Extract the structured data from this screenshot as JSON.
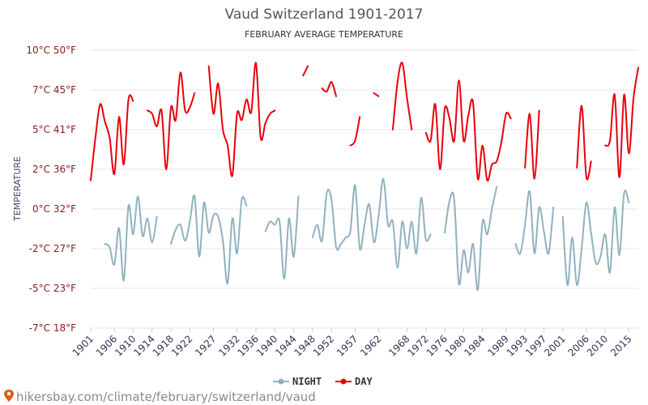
{
  "chart_data": {
    "type": "line",
    "title": "Vaud Switzerland 1901-2017",
    "subtitle": "FEBRUARY AVERAGE TEMPERATURE",
    "ylabel": "TEMPERATURE",
    "ylim": [
      -7,
      10
    ],
    "yticks": [
      {
        "value": 10,
        "label": "10°C 50°F"
      },
      {
        "value": 7.5,
        "label": "7°C 45°F"
      },
      {
        "value": 5,
        "label": "5°C 41°F"
      },
      {
        "value": 2.5,
        "label": "2°C 36°F"
      },
      {
        "value": 0,
        "label": "0°C 32°F"
      },
      {
        "value": -2.5,
        "label": "-2°C 27°F"
      },
      {
        "value": -5,
        "label": "-5°C 23°F"
      },
      {
        "value": -7.5,
        "label": "-7°C 18°F"
      }
    ],
    "xlim": [
      1901,
      2017
    ],
    "xticks": [
      1901,
      1906,
      1910,
      1914,
      1918,
      1922,
      1927,
      1932,
      1936,
      1940,
      1944,
      1948,
      1952,
      1957,
      1962,
      1968,
      1972,
      1976,
      1980,
      1984,
      1989,
      1993,
      1997,
      2001,
      2006,
      2010,
      2015
    ],
    "series": [
      {
        "name": "DAY",
        "color": "#e8000b",
        "values": [
          1.8,
          4.5,
          6.6,
          5.5,
          4.5,
          2.2,
          5.8,
          2.8,
          6.9,
          6.8,
          null,
          null,
          6.2,
          6.0,
          5.2,
          6.2,
          2.5,
          6.4,
          5.6,
          8.6,
          6.2,
          6.4,
          7.3,
          null,
          null,
          9.0,
          6.0,
          7.9,
          5.0,
          4.0,
          2.1,
          6.0,
          5.6,
          6.9,
          6.1,
          9.2,
          4.5,
          5.4,
          6.0,
          6.2,
          null,
          null,
          null,
          null,
          null,
          8.4,
          9.0,
          null,
          null,
          7.6,
          7.4,
          8.0,
          7.1,
          null,
          null,
          4.0,
          4.3,
          5.8,
          null,
          null,
          7.3,
          7.1,
          null,
          null,
          5.0,
          8.0,
          9.2,
          7.0,
          5.0,
          null,
          null,
          4.8,
          4.3,
          6.6,
          2.5,
          6.3,
          5.7,
          4.3,
          8.1,
          4.3,
          5.9,
          6.7,
          1.9,
          4.0,
          1.8,
          2.8,
          3.0,
          4.2,
          6.0,
          5.7,
          null,
          null,
          2.6,
          6.0,
          1.9,
          6.2,
          null,
          null,
          null,
          null,
          null,
          null,
          null,
          2.6,
          6.5,
          2.0,
          3.0,
          null,
          null,
          4.0,
          4.3,
          7.2,
          2.0,
          7.2,
          3.5,
          7.0,
          8.9
        ]
      },
      {
        "name": "NIGHT",
        "color": "#90b2be",
        "values": [
          null,
          null,
          null,
          -2.2,
          -2.4,
          -3.5,
          -1.2,
          -4.5,
          0.2,
          -1.6,
          0.8,
          -1.7,
          -0.6,
          -2.1,
          -0.5,
          null,
          null,
          -2.2,
          -1.3,
          -1.0,
          -2.0,
          -0.8,
          0.8,
          -3.0,
          0.4,
          -1.5,
          -0.4,
          -0.5,
          -2.0,
          -4.7,
          -0.6,
          -2.8,
          0.6,
          0.2,
          null,
          null,
          null,
          -1.4,
          -0.8,
          -1.0,
          -0.8,
          -4.4,
          -0.6,
          -3.0,
          0.8,
          null,
          null,
          -1.8,
          -1.0,
          -2.0,
          1.0,
          0.6,
          -2.4,
          -2.2,
          -1.8,
          -1.4,
          1.5,
          -2.5,
          -1.0,
          0.3,
          -2.1,
          -0.4,
          1.9,
          -1.0,
          -0.8,
          -3.7,
          -0.8,
          -2.5,
          -0.8,
          -2.8,
          0.7,
          -1.9,
          -1.6,
          null,
          null,
          -1.5,
          0.5,
          0.6,
          -4.7,
          -2.6,
          -4.0,
          -2.2,
          -5.1,
          -0.8,
          -1.6,
          0.0,
          1.4,
          null,
          null,
          null,
          -2.2,
          -2.8,
          -1.0,
          1.1,
          -2.8,
          0.1,
          -1.4,
          -2.8,
          0.1,
          null,
          -0.5,
          -4.8,
          -1.8,
          -4.8,
          -2.5,
          0.4,
          -1.5,
          -3.4,
          -3.0,
          -1.6,
          -4.0,
          0.1,
          -2.9,
          1.0,
          0.4
        ]
      }
    ]
  },
  "legend": [
    {
      "label": "NIGHT",
      "color": "#90b2be"
    },
    {
      "label": "DAY",
      "color": "#e8000b"
    }
  ],
  "source": "hikersbay.com/climate/february/switzerland/vaud",
  "icons": {
    "legend_marker": "dot-line-icon",
    "source_icon": "map-pin-icon"
  }
}
